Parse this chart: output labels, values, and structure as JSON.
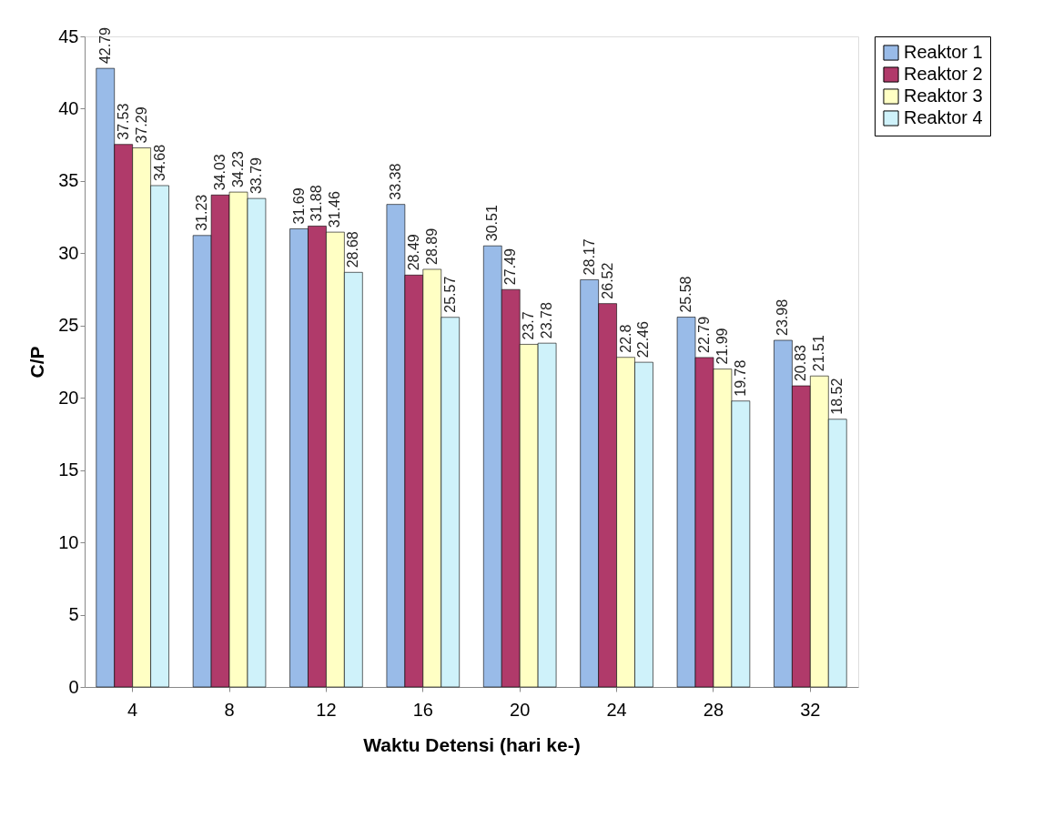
{
  "chart_data": {
    "type": "bar",
    "xlabel": "Waktu Detensi (hari ke-)",
    "ylabel": "C/P",
    "categories": [
      "4",
      "8",
      "12",
      "16",
      "20",
      "24",
      "28",
      "32"
    ],
    "series": [
      {
        "name": "Reaktor 1",
        "color": "#99bbe8",
        "values": [
          42.79,
          31.23,
          31.69,
          33.38,
          30.51,
          28.17,
          25.58,
          23.98
        ]
      },
      {
        "name": "Reaktor 2",
        "color": "#b03a6a",
        "values": [
          37.53,
          34.03,
          31.88,
          28.49,
          27.49,
          26.52,
          22.79,
          20.83
        ]
      },
      {
        "name": "Reaktor 3",
        "color": "#ffffc4",
        "values": [
          37.29,
          34.23,
          31.46,
          28.89,
          23.7,
          22.8,
          21.99,
          21.51
        ]
      },
      {
        "name": "Reaktor 4",
        "color": "#cff2fa",
        "values": [
          34.68,
          33.79,
          28.68,
          25.57,
          23.78,
          22.46,
          19.78,
          18.52
        ]
      }
    ],
    "ylim": [
      0,
      45
    ],
    "yticks": [
      0,
      5,
      10,
      15,
      20,
      25,
      30,
      35,
      40,
      45
    ],
    "data_labels": true,
    "legend": "right",
    "grid": false
  }
}
